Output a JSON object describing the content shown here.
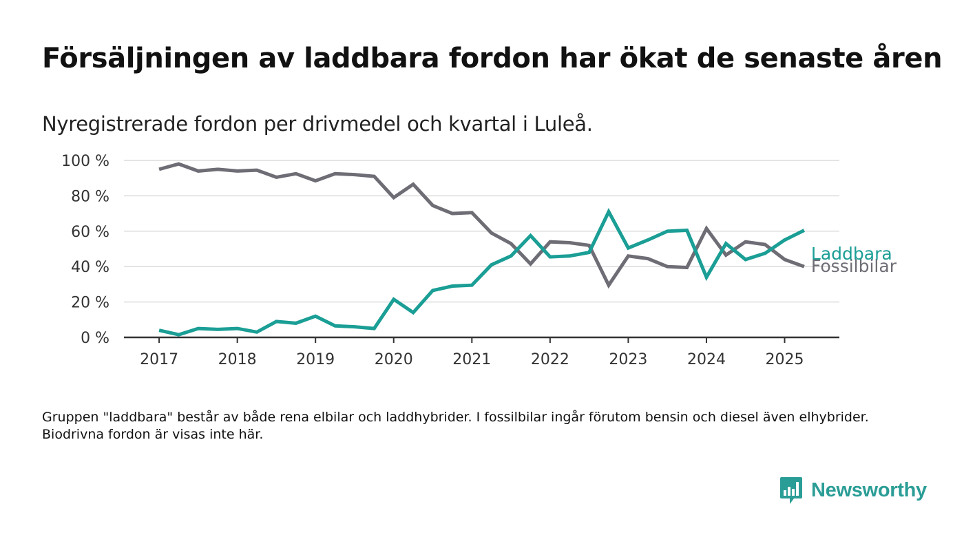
{
  "title": "Försäljningen av laddbara fordon har ökat de senaste åren",
  "subtitle": "Nyregistrerade fordon per drivmedel och kvartal i Luleå.",
  "footnote": "Gruppen \"laddbara\" består av både rena elbilar och laddhybrider. I fossilbilar ingår förutom bensin och diesel även elhybrider. Biodrivna fordon är visas inte här.",
  "brand": {
    "name": "Newsworthy",
    "icon": "newsworthy-logo-icon",
    "color": "#2a9d96"
  },
  "chart_data": {
    "type": "line",
    "title": "",
    "xlabel": "",
    "ylabel": "",
    "x": [
      2017.0,
      2017.25,
      2017.5,
      2017.75,
      2018.0,
      2018.25,
      2018.5,
      2018.75,
      2019.0,
      2019.25,
      2019.5,
      2019.75,
      2020.0,
      2020.25,
      2020.5,
      2020.75,
      2021.0,
      2021.25,
      2021.5,
      2021.75,
      2022.0,
      2022.25,
      2022.5,
      2022.75,
      2023.0,
      2023.25,
      2023.5,
      2023.75,
      2024.0,
      2024.25,
      2024.5,
      2024.75,
      2025.0,
      2025.25
    ],
    "xlim": [
      2016.55,
      2025.7
    ],
    "xticks": [
      2017,
      2018,
      2019,
      2020,
      2021,
      2022,
      2023,
      2024,
      2025
    ],
    "xtick_labels": [
      "2017",
      "2018",
      "2019",
      "2020",
      "2021",
      "2022",
      "2023",
      "2024",
      "2025"
    ],
    "ylim": [
      0,
      100
    ],
    "yticks": [
      0,
      20,
      40,
      60,
      80,
      100
    ],
    "ytick_labels": [
      "0 %",
      "20 %",
      "40 %",
      "60 %",
      "80 %",
      "100 %"
    ],
    "grid": "horizontal",
    "legend": "direct labels at line ends",
    "series": [
      {
        "name": "Fossilbilar",
        "color": "#6e6d75",
        "values": [
          95,
          98,
          94,
          95,
          94,
          94.5,
          90.5,
          92.5,
          88.5,
          92.5,
          92,
          91,
          79,
          86.5,
          74.5,
          70,
          70.5,
          59,
          53,
          41.5,
          54,
          53.5,
          52,
          29.5,
          46,
          44.5,
          40,
          39.5,
          61.5,
          46.5,
          54,
          52.5,
          44,
          40
        ]
      },
      {
        "name": "Laddbara",
        "color": "#1a9e95",
        "values": [
          4,
          1.5,
          5,
          4.5,
          5,
          3,
          9,
          8,
          12,
          6.5,
          6,
          5,
          21.5,
          14,
          26.5,
          29,
          29.5,
          41,
          46,
          57.5,
          45.5,
          46,
          48,
          71,
          50.5,
          55,
          60,
          60.5,
          34,
          53,
          44,
          47.5,
          55,
          60.5
        ]
      }
    ]
  }
}
